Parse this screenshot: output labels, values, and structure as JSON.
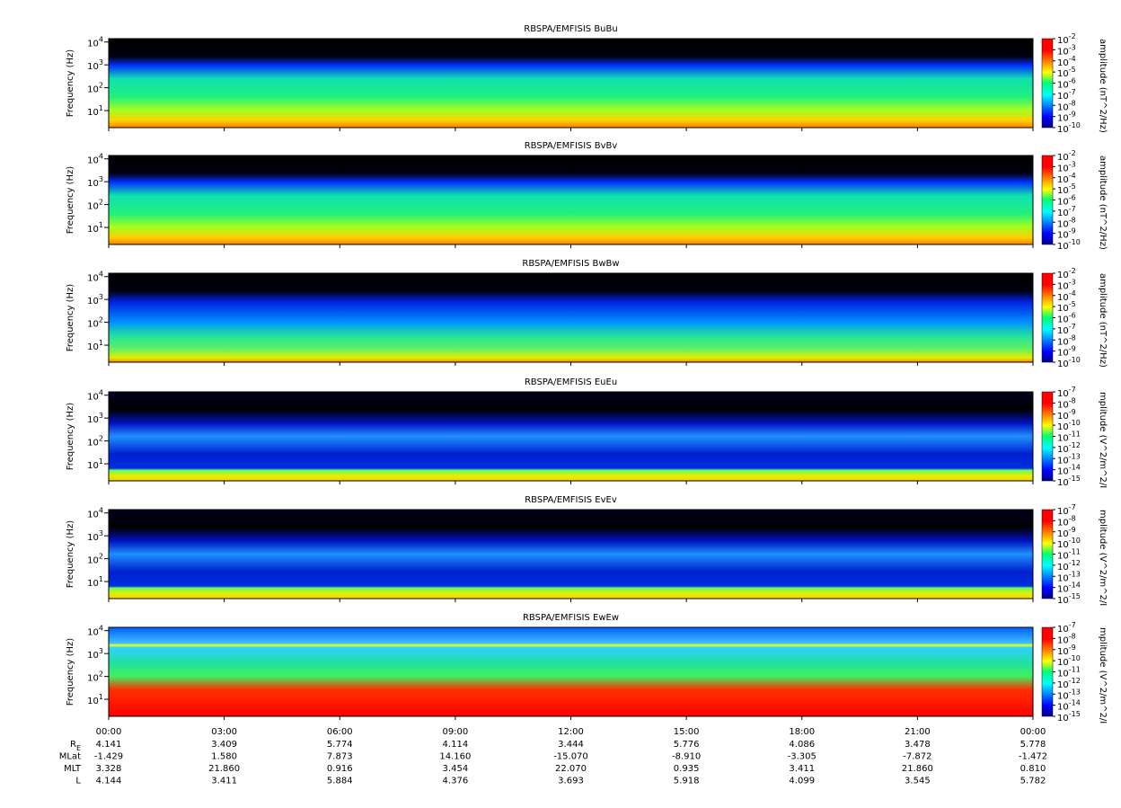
{
  "chart_data": [
    {
      "type": "spectrogram",
      "title": "RBSPA/EMFISIS  BuBu",
      "ylabel": "Frequency (Hz)",
      "log_y": true,
      "ylim": [
        1.8,
        14000
      ],
      "yticks": [
        {
          "value": 10,
          "label": "10^1"
        },
        {
          "value": 100,
          "label": "10^2"
        },
        {
          "value": 1000,
          "label": "10^3"
        },
        {
          "value": 10000,
          "label": "10^4"
        }
      ],
      "style": "magnetic",
      "colorbar": {
        "label": "amplitude (nT^2/Hz)",
        "lim": [
          1e-10,
          0.01
        ],
        "ticks": [
          {
            "value": 0.01,
            "label": "10^-2"
          },
          {
            "value": 0.001,
            "label": "10^-3"
          },
          {
            "value": 0.0001,
            "label": "10^-4"
          },
          {
            "value": 1e-05,
            "label": "10^-5"
          },
          {
            "value": 1e-06,
            "label": "10^-6"
          },
          {
            "value": 1e-07,
            "label": "10^-7"
          },
          {
            "value": 1e-08,
            "label": "10^-8"
          },
          {
            "value": 1e-09,
            "label": "10^-9"
          },
          {
            "value": 1e-10,
            "label": "10^-10"
          }
        ]
      }
    },
    {
      "type": "spectrogram",
      "title": "RBSPA/EMFISIS  BvBv",
      "ylabel": "Frequency (Hz)",
      "log_y": true,
      "ylim": [
        1.8,
        14000
      ],
      "yticks": [
        {
          "value": 10,
          "label": "10^1"
        },
        {
          "value": 100,
          "label": "10^2"
        },
        {
          "value": 1000,
          "label": "10^3"
        },
        {
          "value": 10000,
          "label": "10^4"
        }
      ],
      "style": "magnetic",
      "colorbar": {
        "label": "amplitude (nT^2/Hz)",
        "lim": [
          1e-10,
          0.01
        ],
        "ticks": [
          {
            "value": 0.01,
            "label": "10^-2"
          },
          {
            "value": 0.001,
            "label": "10^-3"
          },
          {
            "value": 0.0001,
            "label": "10^-4"
          },
          {
            "value": 1e-05,
            "label": "10^-5"
          },
          {
            "value": 1e-06,
            "label": "10^-6"
          },
          {
            "value": 1e-07,
            "label": "10^-7"
          },
          {
            "value": 1e-08,
            "label": "10^-8"
          },
          {
            "value": 1e-09,
            "label": "10^-9"
          },
          {
            "value": 1e-10,
            "label": "10^-10"
          }
        ]
      }
    },
    {
      "type": "spectrogram",
      "title": "RBSPA/EMFISIS  BwBw",
      "ylabel": "Frequency (Hz)",
      "log_y": true,
      "ylim": [
        1.8,
        14000
      ],
      "yticks": [
        {
          "value": 10,
          "label": "10^1"
        },
        {
          "value": 100,
          "label": "10^2"
        },
        {
          "value": 1000,
          "label": "10^3"
        },
        {
          "value": 10000,
          "label": "10^4"
        }
      ],
      "style": "magnetic-w",
      "colorbar": {
        "label": "amplitude (nT^2/Hz)",
        "lim": [
          1e-10,
          0.01
        ],
        "ticks": [
          {
            "value": 0.01,
            "label": "10^-2"
          },
          {
            "value": 0.001,
            "label": "10^-3"
          },
          {
            "value": 0.0001,
            "label": "10^-4"
          },
          {
            "value": 1e-05,
            "label": "10^-5"
          },
          {
            "value": 1e-06,
            "label": "10^-6"
          },
          {
            "value": 1e-07,
            "label": "10^-7"
          },
          {
            "value": 1e-08,
            "label": "10^-8"
          },
          {
            "value": 1e-09,
            "label": "10^-9"
          },
          {
            "value": 1e-10,
            "label": "10^-10"
          }
        ]
      }
    },
    {
      "type": "spectrogram",
      "title": "RBSPA/EMFISIS  EuEu",
      "ylabel": "Frequency (Hz)",
      "log_y": true,
      "ylim": [
        1.8,
        14000
      ],
      "yticks": [
        {
          "value": 10,
          "label": "10^1"
        },
        {
          "value": 100,
          "label": "10^2"
        },
        {
          "value": 1000,
          "label": "10^3"
        },
        {
          "value": 10000,
          "label": "10^4"
        }
      ],
      "style": "electric",
      "colorbar": {
        "label": "mplitude (V^2/m^2/I",
        "lim": [
          1e-15,
          1e-07
        ],
        "ticks": [
          {
            "value": 1e-07,
            "label": "10^-7"
          },
          {
            "value": 1e-08,
            "label": "10^-8"
          },
          {
            "value": 1e-09,
            "label": "10^-9"
          },
          {
            "value": 1e-10,
            "label": "10^-10"
          },
          {
            "value": 1e-11,
            "label": "10^-11"
          },
          {
            "value": 1e-12,
            "label": "10^-12"
          },
          {
            "value": 1e-13,
            "label": "10^-13"
          },
          {
            "value": 1e-14,
            "label": "10^-14"
          },
          {
            "value": 1e-15,
            "label": "10^-15"
          }
        ]
      }
    },
    {
      "type": "spectrogram",
      "title": "RBSPA/EMFISIS  EvEv",
      "ylabel": "Frequency (Hz)",
      "log_y": true,
      "ylim": [
        1.8,
        14000
      ],
      "yticks": [
        {
          "value": 10,
          "label": "10^1"
        },
        {
          "value": 100,
          "label": "10^2"
        },
        {
          "value": 1000,
          "label": "10^3"
        },
        {
          "value": 10000,
          "label": "10^4"
        }
      ],
      "style": "electric",
      "colorbar": {
        "label": "mplitude (V^2/m^2/I",
        "lim": [
          1e-15,
          1e-07
        ],
        "ticks": [
          {
            "value": 1e-07,
            "label": "10^-7"
          },
          {
            "value": 1e-08,
            "label": "10^-8"
          },
          {
            "value": 1e-09,
            "label": "10^-9"
          },
          {
            "value": 1e-10,
            "label": "10^-10"
          },
          {
            "value": 1e-11,
            "label": "10^-11"
          },
          {
            "value": 1e-12,
            "label": "10^-12"
          },
          {
            "value": 1e-13,
            "label": "10^-13"
          },
          {
            "value": 1e-14,
            "label": "10^-14"
          },
          {
            "value": 1e-15,
            "label": "10^-15"
          }
        ]
      }
    },
    {
      "type": "spectrogram",
      "title": "RBSPA/EMFISIS  EwEw",
      "ylabel": "Frequency (Hz)",
      "log_y": true,
      "ylim": [
        1.8,
        14000
      ],
      "yticks": [
        {
          "value": 10,
          "label": "10^1"
        },
        {
          "value": 100,
          "label": "10^2"
        },
        {
          "value": 1000,
          "label": "10^3"
        },
        {
          "value": 10000,
          "label": "10^4"
        }
      ],
      "style": "electric-w",
      "colorbar": {
        "label": "mplitude (V^2/m^2/I",
        "lim": [
          1e-15,
          1e-07
        ],
        "ticks": [
          {
            "value": 1e-07,
            "label": "10^-7"
          },
          {
            "value": 1e-08,
            "label": "10^-8"
          },
          {
            "value": 1e-09,
            "label": "10^-9"
          },
          {
            "value": 1e-10,
            "label": "10^-10"
          },
          {
            "value": 1e-11,
            "label": "10^-11"
          },
          {
            "value": 1e-12,
            "label": "10^-12"
          },
          {
            "value": 1e-13,
            "label": "10^-13"
          },
          {
            "value": 1e-14,
            "label": "10^-14"
          },
          {
            "value": 1e-15,
            "label": "10^-15"
          }
        ]
      }
    },
    {
      "type": "axis",
      "xlim": [
        0,
        24
      ],
      "xticks": [
        {
          "value": 0,
          "label": "00:00"
        },
        {
          "value": 3,
          "label": "03:00"
        },
        {
          "value": 6,
          "label": "06:00"
        },
        {
          "value": 9,
          "label": "09:00"
        },
        {
          "value": 12,
          "label": "12:00"
        },
        {
          "value": 15,
          "label": "15:00"
        },
        {
          "value": 18,
          "label": "18:00"
        },
        {
          "value": 21,
          "label": "21:00"
        },
        {
          "value": 24,
          "label": "00:00"
        }
      ],
      "ephemeris": [
        {
          "name": "R_E",
          "values": [
            "4.141",
            "3.409",
            "5.774",
            "4.114",
            "3.444",
            "5.776",
            "4.086",
            "3.478",
            "5.778"
          ]
        },
        {
          "name": "MLat",
          "values": [
            "-1.429",
            "1.580",
            "7.873",
            "14.160",
            "-15.070",
            "-8.910",
            "-3.305",
            "-7.872",
            "-1.472"
          ]
        },
        {
          "name": "MLT",
          "values": [
            "3.328",
            "21.860",
            "0.916",
            "3.454",
            "22.070",
            "0.935",
            "3.411",
            "21.860",
            "0.810"
          ]
        },
        {
          "name": "L",
          "values": [
            "4.144",
            "3.411",
            "5.884",
            "4.376",
            "3.693",
            "5.918",
            "4.099",
            "3.545",
            "5.782"
          ]
        }
      ]
    }
  ]
}
